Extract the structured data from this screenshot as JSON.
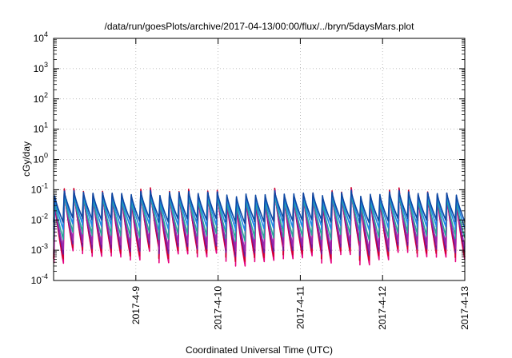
{
  "chart_data": {
    "type": "line",
    "title": "/data/run/goesPlots/archive/2017-04-13/00:00/flux/../bryn/5daysMars.plot",
    "xlabel": "Coordinated Universal Time (UTC)",
    "ylabel": "cGy/day",
    "yscale": "log",
    "ylim": [
      0.0001,
      10000
    ],
    "xlim": [
      0,
      5
    ],
    "grid": "dotted",
    "yticks": [
      {
        "v": 0.0001,
        "base": "10",
        "exp": "-4"
      },
      {
        "v": 0.001,
        "base": "10",
        "exp": "-3"
      },
      {
        "v": 0.01,
        "base": "10",
        "exp": "-2"
      },
      {
        "v": 0.1,
        "base": "10",
        "exp": "-1"
      },
      {
        "v": 1,
        "base": "10",
        "exp": "0"
      },
      {
        "v": 10,
        "base": "10",
        "exp": "1"
      },
      {
        "v": 100,
        "base": "10",
        "exp": "2"
      },
      {
        "v": 1000,
        "base": "10",
        "exp": "3"
      },
      {
        "v": 10000,
        "base": "10",
        "exp": "4"
      }
    ],
    "xticks": [
      {
        "v": 1,
        "label": "2017-4-9"
      },
      {
        "v": 2,
        "label": "2017-4-10"
      },
      {
        "v": 3,
        "label": "2017-4-11"
      },
      {
        "v": 4,
        "label": "2017-4-12"
      },
      {
        "v": 5,
        "label": "2017-4-13"
      }
    ],
    "series": [
      {
        "color": "#e6007e",
        "peak": 0.06,
        "trough": 0.0006,
        "sdev": 0.22,
        "phase": 0.1
      },
      {
        "color": "#d0002a",
        "peak": 0.07,
        "trough": 0.0008,
        "sdev": 0.2,
        "phase": 0.0
      },
      {
        "color": "#6a1b9a",
        "peak": 0.062,
        "trough": 0.0011,
        "sdev": 0.18,
        "phase": 0.05
      },
      {
        "color": "#9c27b0",
        "peak": 0.058,
        "trough": 0.0015,
        "sdev": 0.16,
        "phase": 0.08
      },
      {
        "color": "#26a69a",
        "peak": 0.055,
        "trough": 0.003,
        "sdev": 0.13,
        "phase": 0.04
      },
      {
        "color": "#1e88e5",
        "peak": 0.068,
        "trough": 0.006,
        "sdev": 0.1,
        "phase": 0.02
      },
      {
        "color": "#0d47a1",
        "peak": 0.075,
        "trough": 0.01,
        "sdev": 0.08,
        "phase": 0.0
      }
    ]
  }
}
